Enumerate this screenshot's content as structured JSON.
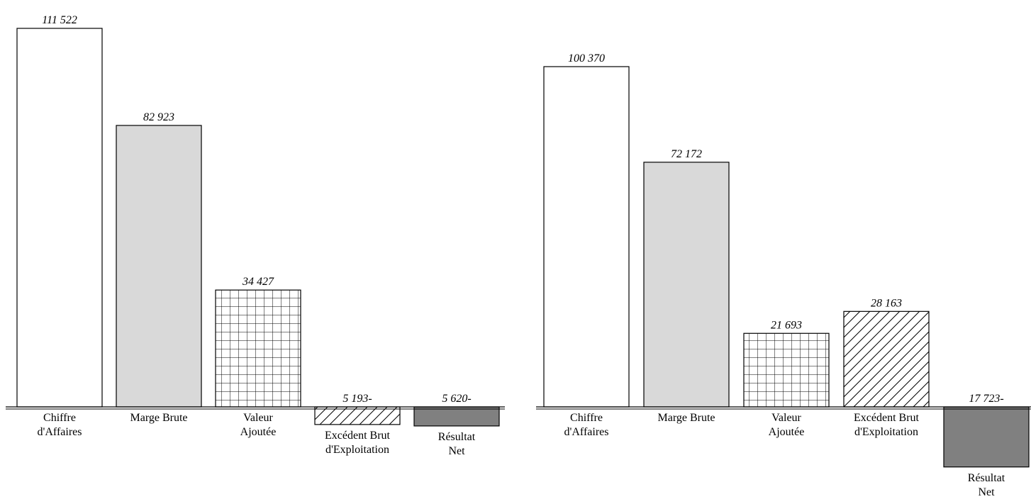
{
  "chart_data": [
    {
      "type": "bar",
      "categories": [
        "Chiffre d'Affaires",
        "Marge Brute",
        "Valeur Ajoutée",
        "Excédent Brut d'Exploitation",
        "Résultat Net"
      ],
      "category_lines": [
        [
          "Chiffre",
          "d'Affaires"
        ],
        [
          "Marge Brute"
        ],
        [
          "Valeur",
          "Ajoutée"
        ],
        [
          "Excédent Brut",
          "d'Exploitation"
        ],
        [
          "Résultat",
          "Net"
        ]
      ],
      "values": [
        111522,
        82923,
        34427,
        -5193,
        -5620
      ],
      "data_labels": [
        "111 522",
        "82 923",
        "34 427",
        "5 193-",
        "5 620-"
      ],
      "fills": [
        "white",
        "lightgray",
        "grid",
        "hatch",
        "darkgray"
      ]
    },
    {
      "type": "bar",
      "categories": [
        "Chiffre d'Affaires",
        "Marge Brute",
        "Valeur Ajoutée",
        "Excédent Brut d'Exploitation",
        "Résultat Net"
      ],
      "category_lines": [
        [
          "Chiffre",
          "d'Affaires"
        ],
        [
          "Marge Brute"
        ],
        [
          "Valeur",
          "Ajoutée"
        ],
        [
          "Excédent Brut",
          "d'Exploitation"
        ],
        [
          "Résultat",
          "Net"
        ]
      ],
      "values": [
        100370,
        72172,
        21693,
        28163,
        -17723
      ],
      "data_labels": [
        "100 370",
        "72 172",
        "21 693",
        "28 163",
        "17 723-"
      ],
      "fills": [
        "white",
        "lightgray",
        "grid",
        "hatch",
        "darkgray"
      ]
    }
  ],
  "colors": {
    "lightgray": "#d9d9d9",
    "darkgray": "#808080",
    "outline": "#000000",
    "white": "#ffffff"
  }
}
